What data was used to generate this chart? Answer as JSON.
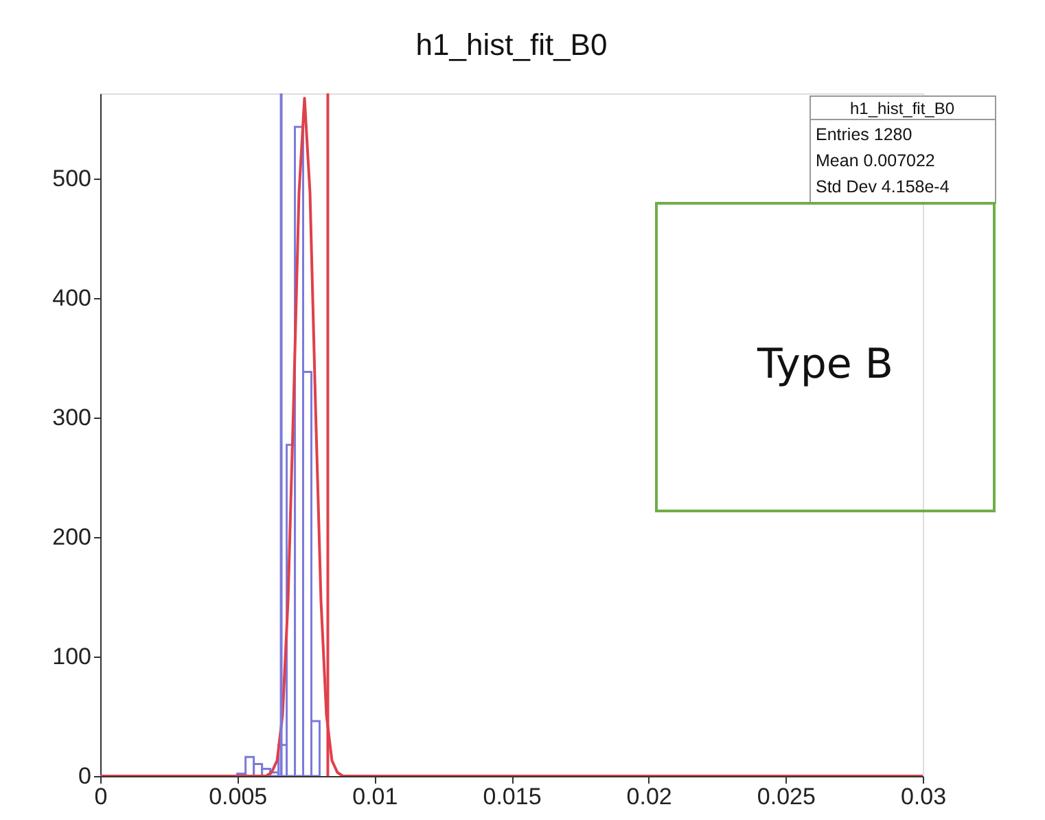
{
  "chart_data": {
    "type": "histogram",
    "title": "h1_hist_fit_B0",
    "series": [
      {
        "color": "#7b7bdb",
        "bins": [
          0.005,
          0.0053,
          0.0056,
          0.0059,
          0.0062,
          0.0065,
          0.0068,
          0.0071,
          0.0074,
          0.0077,
          0.008
        ],
        "values": [
          2,
          16,
          10,
          6,
          3,
          26,
          277,
          543,
          338,
          46
        ]
      },
      {
        "type": "line",
        "color": "#e0404a",
        "x": [
          0,
          0.00605,
          0.00625,
          0.00645,
          0.00665,
          0.00685,
          0.00705,
          0.00725,
          0.00745,
          0.00765,
          0.00785,
          0.00805,
          0.00825,
          0.00845,
          0.00865,
          0.00885,
          0.03
        ],
        "values": [
          0,
          0,
          3,
          13,
          51,
          147,
          311,
          488,
          567,
          488,
          311,
          147,
          51,
          13,
          3,
          0,
          0
        ]
      }
    ],
    "ref_lines": [
      {
        "axis": "x",
        "value": 0.0066,
        "color": "#7b7bdb"
      },
      {
        "axis": "x",
        "value": 0.0083,
        "color": "#e0404a"
      }
    ],
    "annotations": [
      "h1_hist_fit_B0",
      "Entries 1280",
      "Mean 0.007022",
      "Std Dev 4.158e-4",
      "Type B"
    ],
    "xlim": [
      0,
      0.03
    ],
    "xticks": [
      0,
      0.005,
      0.01,
      0.015,
      0.02,
      0.025,
      0.03
    ],
    "ylim": [
      0,
      571
    ],
    "yticks": [
      0,
      100,
      200,
      300,
      400,
      500
    ],
    "grid": false
  }
}
